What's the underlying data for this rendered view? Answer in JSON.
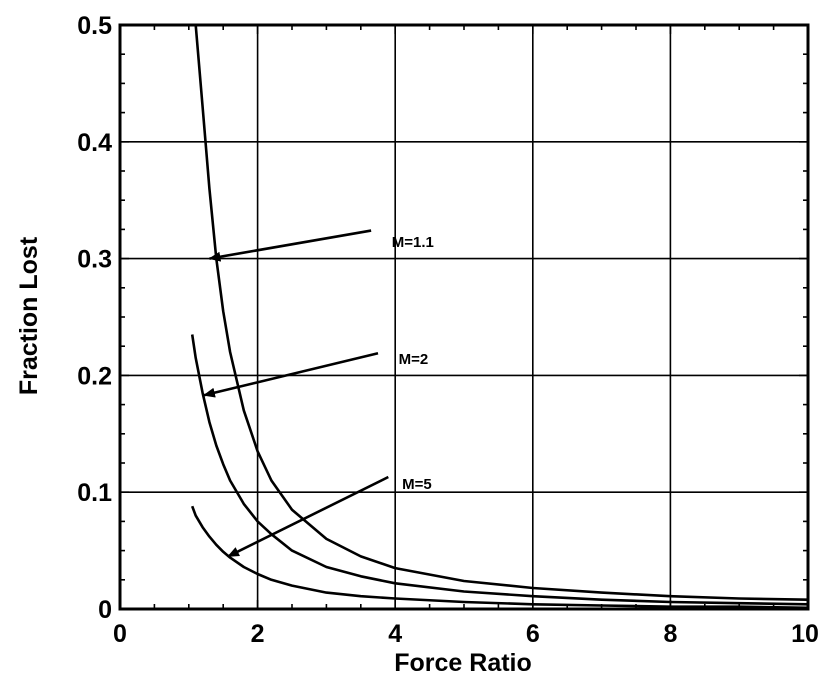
{
  "chart_data": {
    "type": "line",
    "title": "",
    "xlabel": "Force Ratio",
    "ylabel": "Fraction Lost",
    "xlim": [
      0,
      10
    ],
    "ylim": [
      0,
      0.5
    ],
    "x_ticks": [
      {
        "value": 0,
        "label": "0"
      },
      {
        "value": 2,
        "label": "2"
      },
      {
        "value": 4,
        "label": "4"
      },
      {
        "value": 6,
        "label": "6"
      },
      {
        "value": 8,
        "label": "8"
      },
      {
        "value": 10,
        "label": "10"
      }
    ],
    "y_ticks": [
      {
        "value": 0,
        "label": "0"
      },
      {
        "value": 0.1,
        "label": "0.1"
      },
      {
        "value": 0.2,
        "label": "0.2"
      },
      {
        "value": 0.3,
        "label": "0.3"
      },
      {
        "value": 0.4,
        "label": "0.4"
      },
      {
        "value": 0.5,
        "label": "0.5"
      }
    ],
    "grid": true,
    "legend": "none",
    "series": [
      {
        "name": "M=1.1",
        "x": [
          1.1,
          1.2,
          1.3,
          1.4,
          1.5,
          1.6,
          1.8,
          2.0,
          2.2,
          2.5,
          3.0,
          3.5,
          4.0,
          5.0,
          6.0,
          7.0,
          8.0,
          9.0,
          10.0
        ],
        "y": [
          0.5,
          0.43,
          0.36,
          0.3,
          0.255,
          0.22,
          0.17,
          0.135,
          0.11,
          0.085,
          0.06,
          0.045,
          0.035,
          0.024,
          0.018,
          0.014,
          0.011,
          0.009,
          0.008
        ]
      },
      {
        "name": "M=2",
        "x": [
          1.05,
          1.1,
          1.2,
          1.3,
          1.4,
          1.5,
          1.6,
          1.8,
          2.0,
          2.2,
          2.5,
          3.0,
          3.5,
          4.0,
          5.0,
          6.0,
          7.0,
          8.0,
          9.0,
          10.0
        ],
        "y": [
          0.235,
          0.215,
          0.185,
          0.16,
          0.14,
          0.124,
          0.11,
          0.09,
          0.075,
          0.064,
          0.05,
          0.036,
          0.028,
          0.022,
          0.015,
          0.011,
          0.008,
          0.006,
          0.005,
          0.004
        ]
      },
      {
        "name": "M=5",
        "x": [
          1.05,
          1.1,
          1.2,
          1.3,
          1.4,
          1.5,
          1.6,
          1.8,
          2.0,
          2.2,
          2.5,
          3.0,
          3.5,
          4.0,
          5.0,
          6.0,
          7.0,
          8.0,
          9.0,
          10.0
        ],
        "y": [
          0.088,
          0.08,
          0.07,
          0.062,
          0.055,
          0.049,
          0.044,
          0.036,
          0.03,
          0.025,
          0.02,
          0.014,
          0.011,
          0.009,
          0.006,
          0.004,
          0.003,
          0.002,
          0.002,
          0.001
        ]
      }
    ],
    "annotations": [
      {
        "text": "M=1.1",
        "series": "M=1.1",
        "text_at": [
          3.95,
          0.315
        ],
        "arrow_from": [
          3.65,
          0.324
        ],
        "arrow_to": [
          1.3,
          0.3
        ]
      },
      {
        "text": "M=2",
        "series": "M=2",
        "text_at": [
          4.05,
          0.215
        ],
        "arrow_from": [
          3.75,
          0.219
        ],
        "arrow_to": [
          1.22,
          0.183
        ]
      },
      {
        "text": "M=5",
        "series": "M=5",
        "text_at": [
          4.1,
          0.108
        ],
        "arrow_from": [
          3.9,
          0.113
        ],
        "arrow_to": [
          1.57,
          0.045
        ]
      }
    ],
    "style": {
      "line_color": "#000000",
      "grid_color": "#000000",
      "background": "#ffffff"
    }
  }
}
